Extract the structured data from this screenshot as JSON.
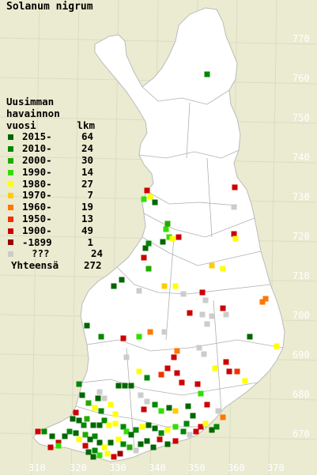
{
  "title": "Solanum nigrum",
  "legend": {
    "header_line1": "Uusimman",
    "header_line2": "havainnon",
    "header_line3": "vuosi",
    "count_header": "lkm",
    "entries": [
      {
        "period": "2015-",
        "count": "64",
        "color": "#006600"
      },
      {
        "period": "2010-",
        "count": "24",
        "color": "#008800"
      },
      {
        "period": "2000-",
        "count": "30",
        "color": "#22aa00"
      },
      {
        "period": "1990-",
        "count": "14",
        "color": "#33dd00"
      },
      {
        "period": "1980-",
        "count": "27",
        "color": "#ffff00"
      },
      {
        "period": "1970-",
        "count": "7",
        "color": "#ffcc00"
      },
      {
        "period": "1960-",
        "count": "19",
        "color": "#ff7700"
      },
      {
        "period": "1950-",
        "count": "13",
        "color": "#ee3300"
      },
      {
        "period": "1900-",
        "count": "49",
        "color": "#cc0000"
      },
      {
        "period": "-1899",
        "count": "1",
        "color": "#990000"
      },
      {
        "period": "???",
        "count": "24",
        "color": "#cccccc"
      }
    ],
    "total_label": "Yhteensä",
    "total_count": "272"
  },
  "axes": {
    "y_labels": [
      "770",
      "760",
      "750",
      "740",
      "730",
      "720",
      "710",
      "700",
      "690",
      "680",
      "670"
    ],
    "x_labels": [
      "310",
      "320",
      "330",
      "340",
      "350",
      "360",
      "370"
    ]
  },
  "colors": {
    "background": "#ebebd1",
    "land": "#ffffff",
    "borders": "#a0a0a0",
    "grid": "#d8d8c0",
    "axis_labels": "#ffffff"
  }
}
